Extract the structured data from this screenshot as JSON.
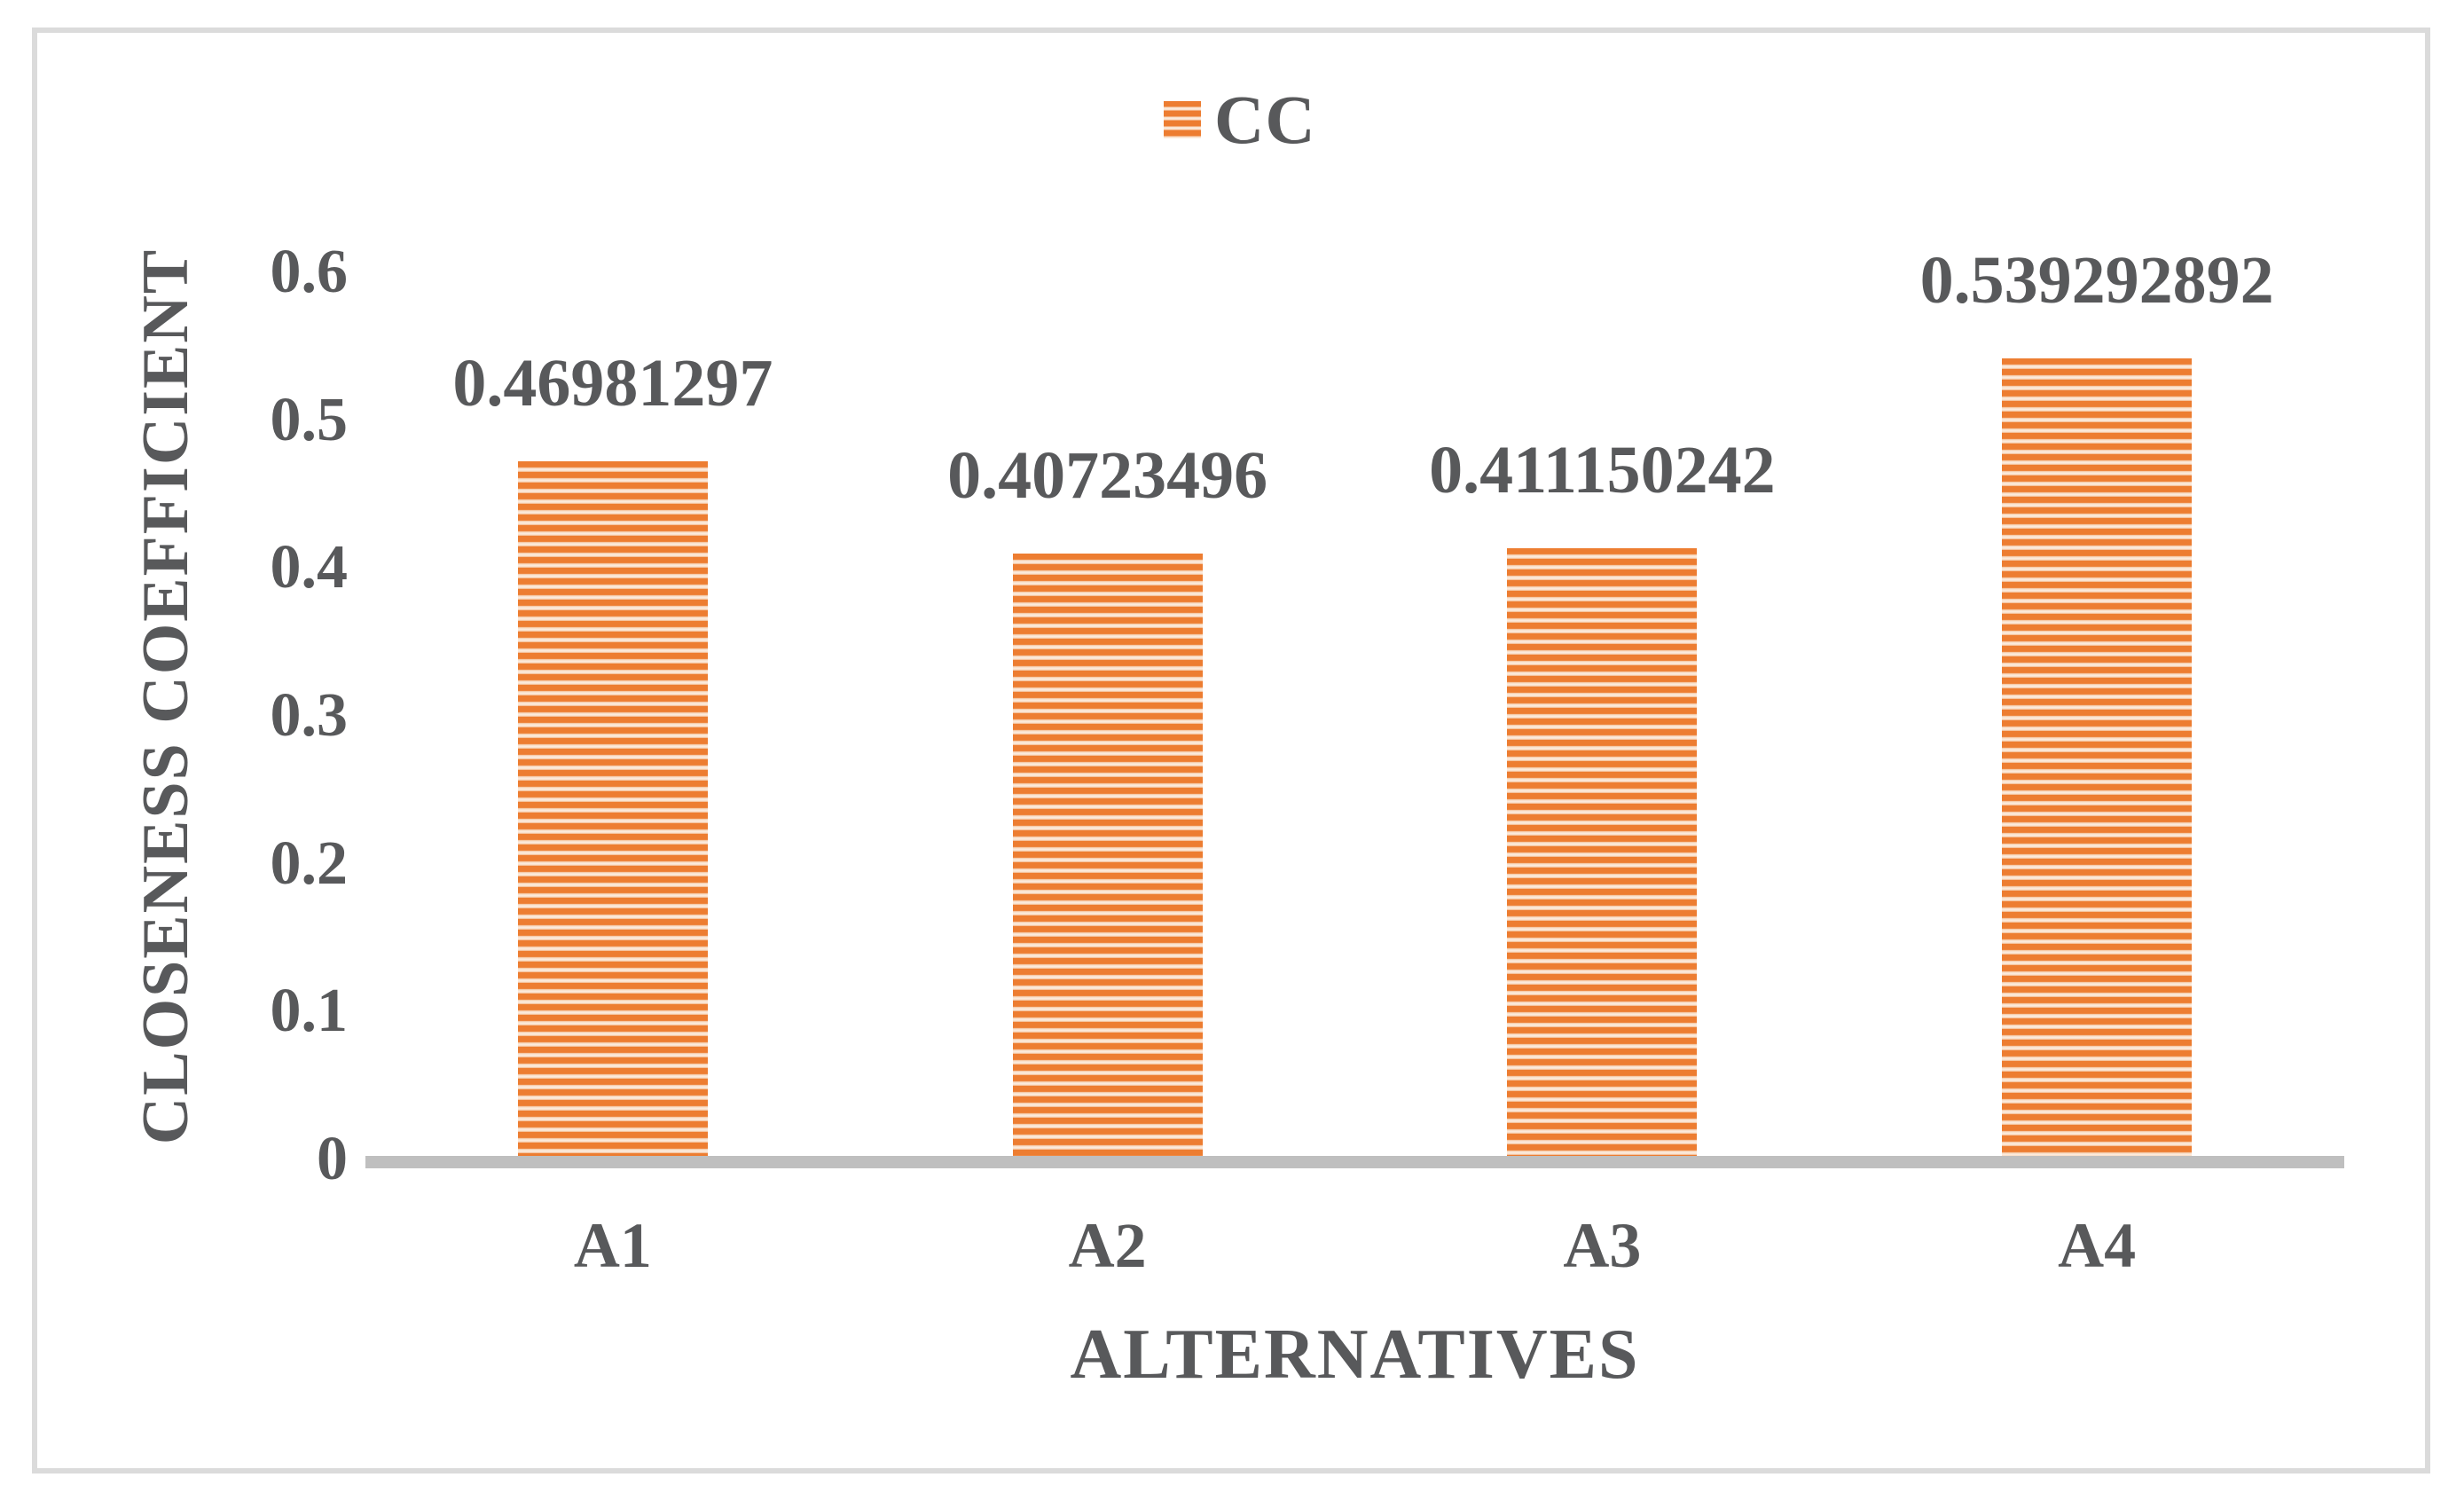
{
  "chart_data": {
    "type": "bar",
    "series_name": "CC",
    "categories": [
      "A1",
      "A2",
      "A3",
      "A4"
    ],
    "values": [
      0.46981297,
      0.40723496,
      0.411150242,
      0.539292892
    ],
    "data_labels": [
      "0.46981297",
      "0.40723496",
      "0.411150242",
      "0.539292892"
    ],
    "xlabel": "ALTERNATIVES",
    "ylabel": "CLOSENESS COEFFICIENT",
    "ylim": [
      0,
      0.6
    ],
    "yticks": [
      "0.6",
      "0.5",
      "0.4",
      "0.3",
      "0.2",
      "0.1",
      "0"
    ],
    "grid": false,
    "legend_position": "top-center",
    "colors": {
      "bar_stripe": "#ED7D31",
      "bar_stripe_light": "#FCEDE0",
      "axis_line": "#BFBFBF",
      "text": "#58595B",
      "border": "#DBDBDB"
    }
  }
}
